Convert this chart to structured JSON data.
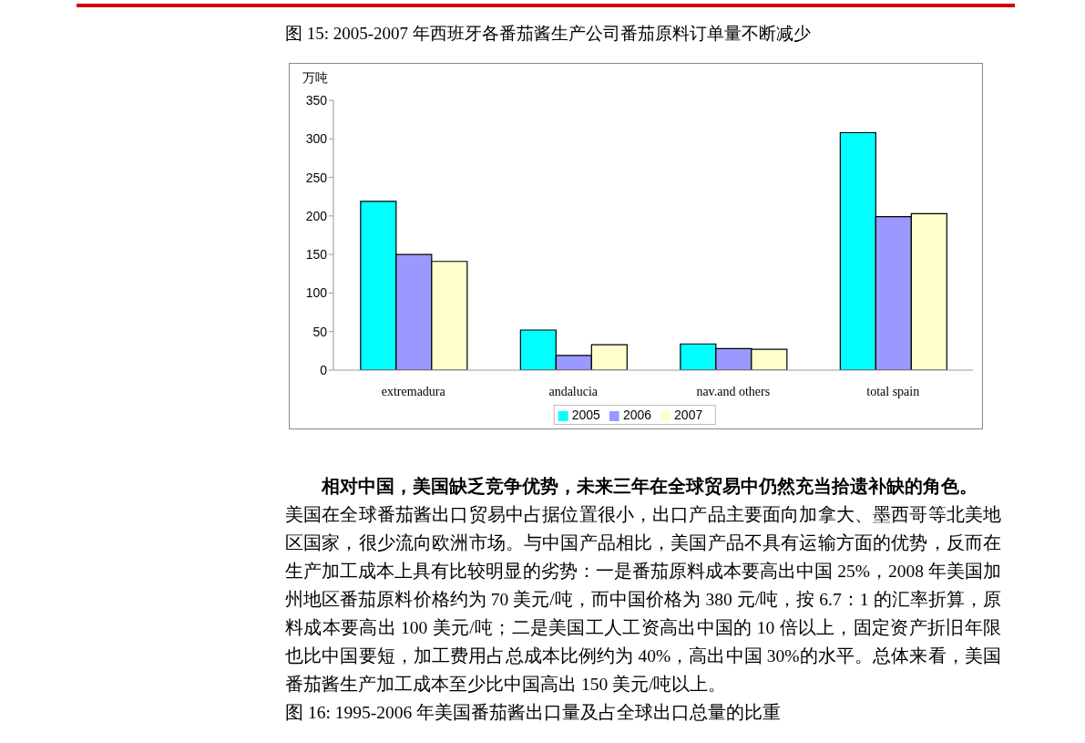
{
  "chart_data": {
    "type": "bar",
    "title": "图 15: 2005-2007 年西班牙各番茄酱生产公司番茄原料订单量不断减少",
    "ylabel": "万吨",
    "categories": [
      "extremadura",
      "andalucia",
      "nav.and others",
      "total spain"
    ],
    "series": [
      {
        "name": "2005",
        "color": "#00ffff",
        "values": [
          219,
          52,
          34,
          308
        ]
      },
      {
        "name": "2006",
        "color": "#9999ff",
        "values": [
          150,
          19,
          28,
          199
        ]
      },
      {
        "name": "2007",
        "color": "#ffffcc",
        "values": [
          141,
          33,
          27,
          203
        ]
      }
    ],
    "ylim": [
      0,
      350
    ],
    "yticks": [
      0,
      50,
      100,
      150,
      200,
      250,
      300,
      350
    ],
    "grid": false,
    "legend": "bottom",
    "annotations": [
      "相对中国，美国缺乏竞争优势，未来三年在全球贸易中仍然充当拾遗补缺的角色。",
      "美国在全球番茄酱出口贸易中占据位置很小，出口产品主要面向加拿大、墨西哥等北美地区国家，很少流向欧洲市场。与中国产品相比，美国产品不具有运输方面的优势，反而在生产加工成本上具有比较明显的劣势：一是番茄原料成本要高出中国 25%，2008 年美国加州地区番茄原料价格约为 70 美元/吨，而中国价格为 380 元/吨，按 6.7：1 的汇率折算，原料成本要高出 100 美元/吨；二是美国工人工资高出中国的 10 倍以上，固定资产折旧年限也比中国要短，加工费用占总成本比例约为 40%，高出中国 30%的水平。总体来看，美国番茄酱生产加工成本至少比中国高出 150 美元/吨以上。",
      "图 16: 1995-2006 年美国番茄酱出口量及占全球出口总量的比重"
    ]
  }
}
